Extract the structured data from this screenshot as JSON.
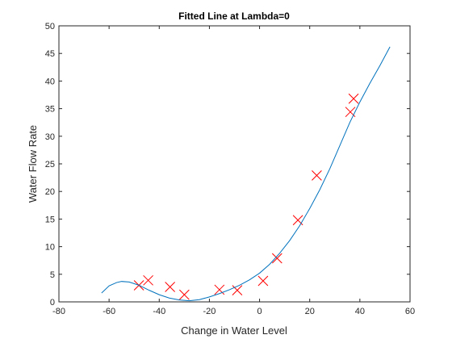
{
  "chart_data": {
    "type": "scatter",
    "title": "Fitted Line at Lambda=0",
    "xlabel": "Change in Water Level",
    "ylabel": "Water Flow Rate",
    "xlim": [
      -80,
      60
    ],
    "ylim": [
      0,
      50
    ],
    "xticks": [
      -80,
      -60,
      -40,
      -20,
      0,
      20,
      40,
      60
    ],
    "yticks": [
      0,
      5,
      10,
      15,
      20,
      25,
      30,
      35,
      40,
      45,
      50
    ],
    "grid": false,
    "legend": "none",
    "series": [
      {
        "kind": "scatter",
        "marker": "x",
        "color": "#ff0000",
        "points": [
          [
            -48.1,
            3.0
          ],
          [
            -44.4,
            3.9
          ],
          [
            -35.7,
            2.7
          ],
          [
            -30.0,
            1.3
          ],
          [
            -16.0,
            2.2
          ],
          [
            -8.9,
            2.1
          ],
          [
            1.4,
            3.8
          ],
          [
            7.0,
            7.9
          ],
          [
            15.3,
            14.8
          ],
          [
            22.8,
            22.9
          ],
          [
            36.2,
            34.4
          ],
          [
            37.5,
            36.8
          ]
        ]
      },
      {
        "kind": "line",
        "color": "#0072bd",
        "points": [
          [
            -63,
            1.6
          ],
          [
            -60,
            2.9
          ],
          [
            -57,
            3.5
          ],
          [
            -55,
            3.7
          ],
          [
            -52,
            3.6
          ],
          [
            -48,
            3.0
          ],
          [
            -44,
            2.1
          ],
          [
            -40,
            1.3
          ],
          [
            -36,
            0.7
          ],
          [
            -32,
            0.35
          ],
          [
            -28,
            0.2
          ],
          [
            -24,
            0.4
          ],
          [
            -20,
            0.9
          ],
          [
            -16,
            1.5
          ],
          [
            -12,
            2.2
          ],
          [
            -8,
            3.0
          ],
          [
            -4,
            4.0
          ],
          [
            0,
            5.2
          ],
          [
            4,
            6.8
          ],
          [
            8,
            8.8
          ],
          [
            12,
            11.1
          ],
          [
            16,
            13.8
          ],
          [
            20,
            16.9
          ],
          [
            24,
            20.3
          ],
          [
            28,
            24.1
          ],
          [
            32,
            28.3
          ],
          [
            36,
            32.5
          ],
          [
            40,
            36.2
          ],
          [
            44,
            39.6
          ],
          [
            48,
            42.8
          ],
          [
            52,
            46.2
          ]
        ]
      }
    ]
  }
}
